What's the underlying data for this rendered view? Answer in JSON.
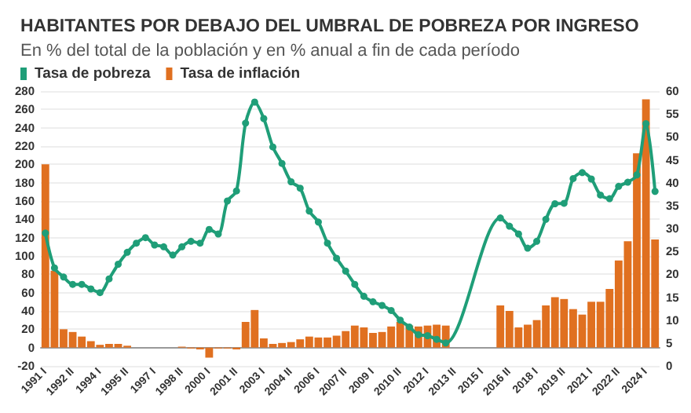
{
  "chart_data": {
    "type": "bar",
    "title": "HABITANTES POR DEBAJO DEL UMBRAL DE POBREZA POR INGRESO",
    "subtitle": "En % del total de la población y en % anual a fin de cada período",
    "categories": [
      "1991 I",
      null,
      null,
      "1992 II",
      null,
      null,
      "1994 I",
      null,
      null,
      "1995 II",
      null,
      null,
      "1997 I",
      null,
      null,
      "1998 II",
      null,
      null,
      "2000 I",
      null,
      null,
      "2001 II",
      null,
      null,
      "2003 I",
      null,
      null,
      "2004 II",
      null,
      null,
      "2006 I",
      null,
      null,
      "2007 II",
      null,
      null,
      "2009 I",
      null,
      null,
      "2010 II",
      null,
      null,
      "2012 I",
      null,
      null,
      "2013 II",
      null,
      null,
      "2015 I",
      null,
      null,
      "2016 II",
      null,
      null,
      "2018 I",
      null,
      null,
      "2019 II",
      null,
      null,
      "2021 I",
      null,
      null,
      "2022 II",
      null,
      null,
      "2024 I",
      null
    ],
    "series": [
      {
        "name": "Tasa de pobreza",
        "type": "line",
        "axis": "y2",
        "color": "#1f9e78",
        "values": [
          29,
          21.4,
          19.4,
          17.8,
          17.8,
          16.8,
          16,
          19,
          22.2,
          24.8,
          26.8,
          28,
          26.4,
          26,
          24.2,
          26,
          27.2,
          26.8,
          29.8,
          28.8,
          36,
          38.2,
          53,
          57.6,
          54,
          47.8,
          44.2,
          40.2,
          38.8,
          33.8,
          31.4,
          26.8,
          23.5,
          20.7,
          17.8,
          15.2,
          14,
          13.2,
          12.1,
          10,
          8.5,
          6.8,
          6.6,
          5.8,
          5,
          null,
          null,
          null,
          null,
          null,
          32.3,
          30.5,
          28.8,
          25.7,
          27.2,
          32,
          35.4,
          35.5,
          40.9,
          42.2,
          40.8,
          37.3,
          36.5,
          39.2,
          40.1,
          41.7,
          52.9,
          38.1
        ]
      },
      {
        "name": "Tasa de inflación",
        "color": "#e07020",
        "values": [
          200,
          84,
          20,
          17,
          12,
          7,
          3,
          4,
          4,
          2,
          0,
          0,
          0,
          0,
          0,
          1,
          -1,
          -2,
          -11,
          -1,
          -1,
          -2,
          28,
          41,
          10,
          4,
          5,
          6,
          9,
          12,
          11,
          11,
          13,
          18,
          24,
          22,
          16,
          17,
          23,
          28,
          24,
          23,
          24,
          25,
          24,
          null,
          null,
          null,
          null,
          null,
          46,
          40,
          22,
          25,
          30,
          46,
          55,
          53,
          42,
          36,
          50,
          50,
          64,
          95,
          116,
          212,
          271,
          118
        ]
      }
    ],
    "ylim": [
      -20,
      280
    ],
    "yticks": [
      -20,
      0,
      20,
      40,
      60,
      80,
      100,
      120,
      140,
      160,
      180,
      200,
      220,
      240,
      260,
      280
    ],
    "y2lim": [
      0,
      60
    ],
    "y2ticks": [
      0,
      5,
      10,
      15,
      20,
      25,
      30,
      35,
      40,
      45,
      50,
      55,
      60
    ],
    "grid": "y",
    "legend": "top left",
    "marker": "circle"
  }
}
